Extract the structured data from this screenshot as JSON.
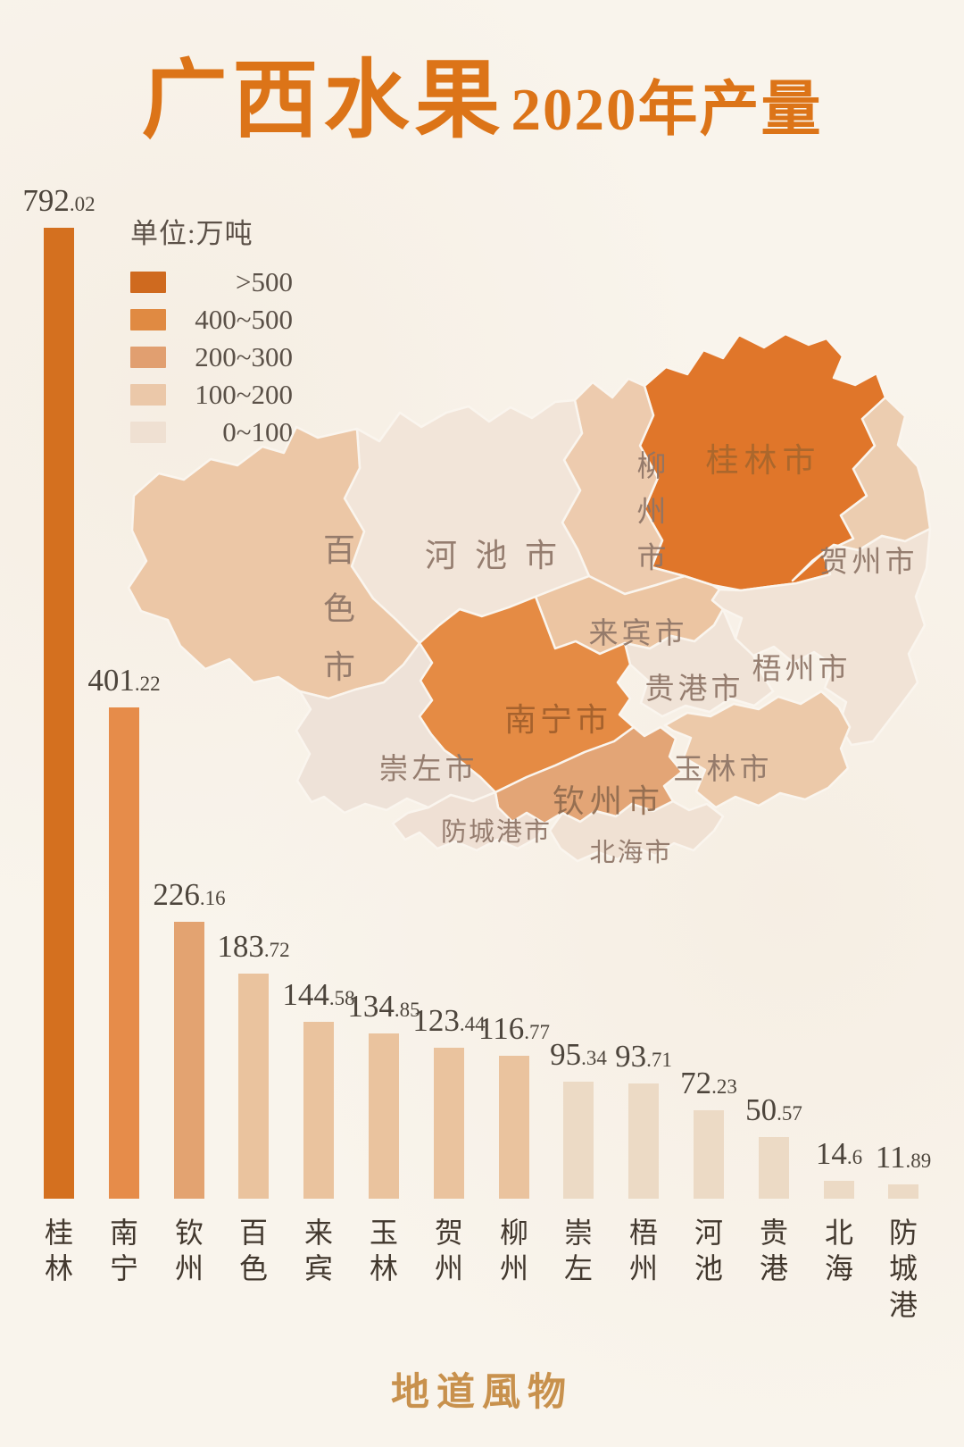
{
  "title": {
    "main": "广西水果",
    "suffix": "2020年产量"
  },
  "legend": {
    "unit_label": "单位:万吨",
    "bands": [
      {
        "label": ">500",
        "color": "#cf6a1f"
      },
      {
        "label": "400~500",
        "color": "#e08a42"
      },
      {
        "label": "200~300",
        "color": "#e19f70"
      },
      {
        "label": "100~200",
        "color": "#ebc8a9"
      },
      {
        "label": "0~100",
        "color": "#efe0d2"
      }
    ]
  },
  "chart_data": {
    "type": "bar",
    "title": "广西水果2020年产量",
    "unit": "万吨",
    "categories": [
      "桂林",
      "南宁",
      "钦州",
      "百色",
      "来宾",
      "玉林",
      "贺州",
      "柳州",
      "崇左",
      "梧州",
      "河池",
      "贵港",
      "北海",
      "防城港"
    ],
    "values": [
      792.02,
      401.22,
      226.16,
      183.72,
      144.58,
      134.85,
      123.44,
      116.77,
      95.34,
      93.71,
      72.23,
      50.57,
      14.6,
      11.89
    ],
    "value_labels": [
      "792.02",
      "401.22",
      "226.16",
      "183.72",
      "144.58",
      "134.85",
      "123.44",
      "116.77",
      "95.34",
      "93.71",
      "72.23",
      "50.57",
      "14.6",
      "11.89"
    ],
    "ylim": [
      0,
      800
    ],
    "grid": false,
    "legend_position": "upper-left",
    "bar_colors_by_band": {
      ">500": "#d4701f",
      "400~500": "#e68c4a",
      "200~300": "#e3a371",
      "100~200": "#eac39e",
      "0~100": "#ecdac5"
    },
    "band_thresholds": [
      500,
      400,
      200,
      100,
      0
    ]
  },
  "map": {
    "regions": [
      {
        "name": "桂林市",
        "value": 792.02,
        "band": ">500",
        "color": "#e0762a"
      },
      {
        "name": "柳州市",
        "value": 116.77,
        "band": "100~200",
        "color": "#edcbae"
      },
      {
        "name": "贺州市",
        "value": 123.44,
        "band": "100~200",
        "color": "#eccdb0"
      },
      {
        "name": "河池市",
        "value": 72.23,
        "band": "0~100",
        "color": "#f2e5d9"
      },
      {
        "name": "百色市",
        "value": 183.72,
        "band": "100~200",
        "color": "#ecc7a6"
      },
      {
        "name": "来宾市",
        "value": 144.58,
        "band": "100~200",
        "color": "#ecc5a2"
      },
      {
        "name": "梧州市",
        "value": 93.71,
        "band": "0~100",
        "color": "#f1e3d6"
      },
      {
        "name": "贵港市",
        "value": 50.57,
        "band": "0~100",
        "color": "#f0e3d7"
      },
      {
        "name": "南宁市",
        "value": 401.22,
        "band": "400~500",
        "color": "#e58b44"
      },
      {
        "name": "玉林市",
        "value": 134.85,
        "band": "100~200",
        "color": "#ecc9a9"
      },
      {
        "name": "崇左市",
        "value": 95.34,
        "band": "0~100",
        "color": "#eee2d8"
      },
      {
        "name": "钦州市",
        "value": 226.16,
        "band": "200~300",
        "color": "#e3a576"
      },
      {
        "name": "防城港市",
        "value": 11.89,
        "band": "0~100",
        "color": "#efe0d4"
      },
      {
        "name": "北海市",
        "value": 14.6,
        "band": "0~100",
        "color": "#f0e1d3"
      }
    ]
  },
  "footer": {
    "brand": "地道風物"
  }
}
